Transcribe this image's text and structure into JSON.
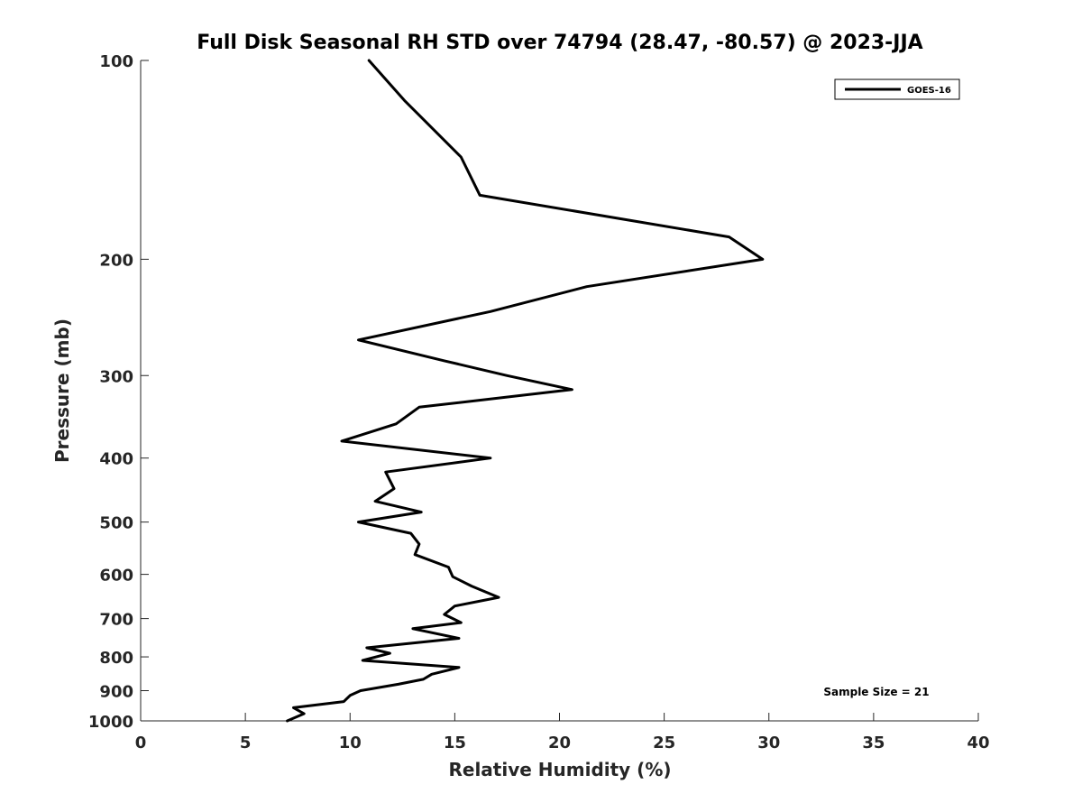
{
  "chart_data": {
    "type": "line",
    "title": "Full Disk Seasonal RH STD over 74794 (28.47, -80.57) @ 2023-JJA",
    "xlabel": "Relative Humidity (%)",
    "ylabel": "Pressure (mb)",
    "xlim": [
      0,
      40
    ],
    "ylim": [
      100,
      1000
    ],
    "y_scale": "log",
    "y_reversed": true,
    "grid": false,
    "legend_position": "top-right",
    "x_ticks": [
      0,
      5,
      10,
      15,
      20,
      25,
      30,
      35,
      40
    ],
    "x_tick_labels": [
      "0",
      "5",
      "10",
      "15",
      "20",
      "25",
      "30",
      "35",
      "40"
    ],
    "y_ticks": [
      100,
      200,
      300,
      400,
      500,
      600,
      700,
      800,
      900,
      1000
    ],
    "y_tick_labels": [
      "100",
      "200",
      "300",
      "400",
      "500",
      "600",
      "700",
      "800",
      "900",
      "1000"
    ],
    "series": [
      {
        "name": "GOES-16",
        "color": "#000000",
        "x": [
          10.9,
          12.6,
          15.3,
          16.2,
          28.1,
          29.7,
          21.3,
          16.7,
          10.4,
          14.5,
          17.5,
          20.6,
          13.3,
          12.2,
          9.6,
          16.7,
          11.7,
          12.1,
          11.2,
          13.4,
          10.4,
          12.9,
          13.3,
          13.1,
          14.7,
          14.9,
          15.8,
          17.1,
          15.0,
          14.5,
          15.3,
          13.0,
          15.2,
          10.8,
          11.9,
          10.6,
          15.2,
          13.9,
          13.5,
          12.3,
          10.5,
          10.0,
          9.7,
          7.3,
          7.8,
          7.0
        ],
        "y": [
          100,
          115,
          140,
          160,
          185,
          200,
          220,
          240,
          265,
          285,
          300,
          315,
          335,
          355,
          377,
          400,
          420,
          445,
          465,
          483,
          500,
          520,
          540,
          560,
          585,
          605,
          625,
          650,
          670,
          690,
          710,
          725,
          750,
          775,
          790,
          810,
          830,
          850,
          865,
          880,
          900,
          915,
          935,
          955,
          975,
          1000
        ]
      }
    ],
    "annotations": [
      "Sample Size = 21"
    ]
  }
}
